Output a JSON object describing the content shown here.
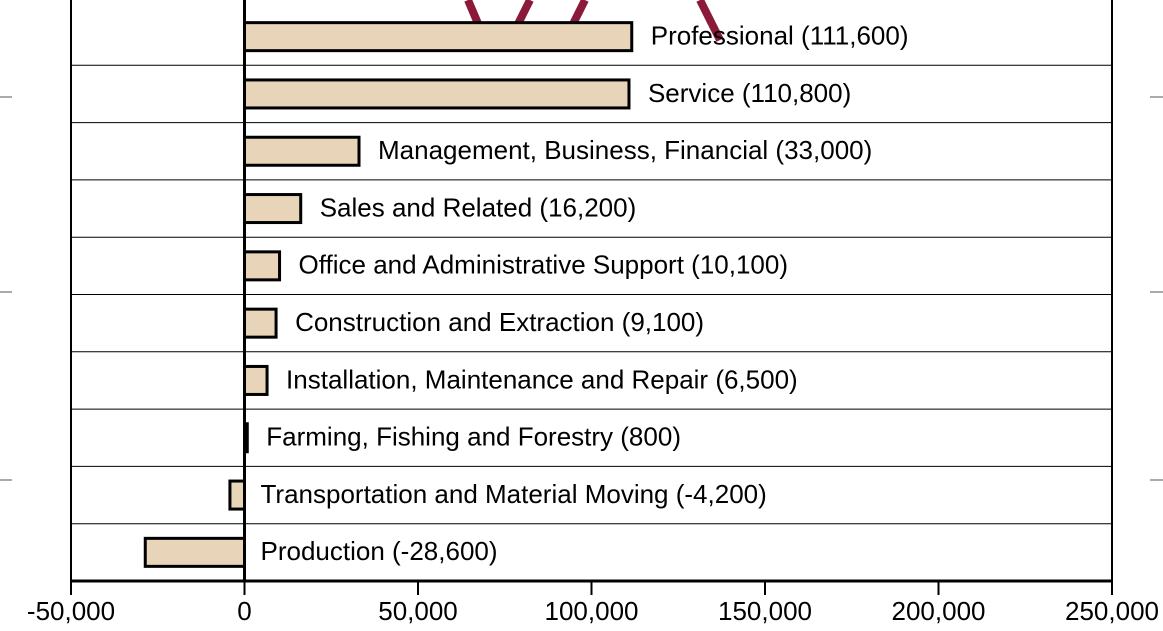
{
  "chart_data": {
    "type": "bar",
    "orientation": "horizontal",
    "categories": [
      "Professional (111,600)",
      "Service (110,800)",
      "Management, Business, Financial (33,000)",
      "Sales and Related (16,200)",
      "Office and Administrative Support (10,100)",
      "Construction and Extraction (9,100)",
      "Installation, Maintenance and Repair (6,500)",
      "Farming, Fishing and Forestry (800)",
      "Transportation and Material Moving (-4,200)",
      "Production (-28,600)"
    ],
    "values": [
      111600,
      110800,
      33000,
      16200,
      10100,
      9100,
      6500,
      800,
      -4200,
      -28600
    ],
    "color": "#e8d5b9",
    "xlim": [
      -50000,
      250000
    ],
    "xticks": [
      {
        "value": -50000,
        "label": "-50,000"
      },
      0,
      {
        "value": 50000,
        "label": "50,000"
      },
      {
        "value": 100000,
        "label": "100,000"
      },
      {
        "value": 150000,
        "label": "150,000"
      },
      {
        "value": 200000,
        "label": "200,000"
      },
      {
        "value": 250000,
        "label": "250,000"
      }
    ]
  }
}
